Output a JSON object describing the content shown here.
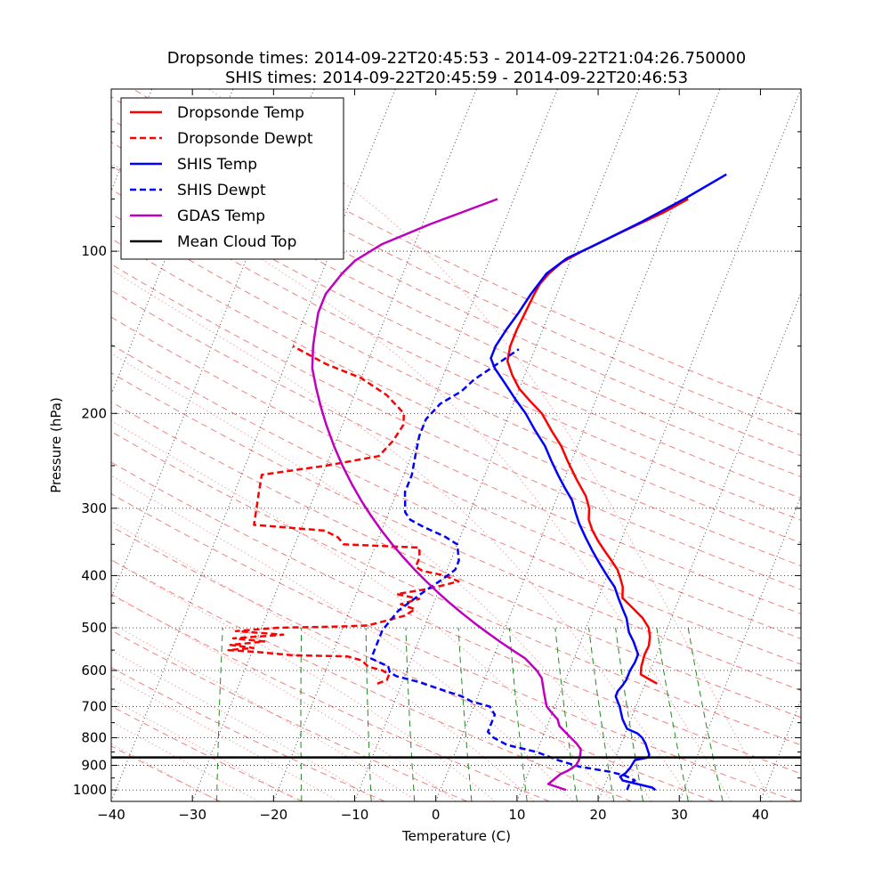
{
  "chart_data": {
    "type": "line",
    "title_line1": "Dropsonde times: 2014-09-22T20:45:53 - 2014-09-22T21:04:26.750000",
    "title_line2": "SHIS times: 2014-09-22T20:45:59 - 2014-09-22T20:46:53",
    "xlabel": "Temperature (C)",
    "ylabel": "Pressure (hPa)",
    "xlim": [
      -40,
      45
    ],
    "ylim": [
      1050,
      50
    ],
    "y_scale": "log",
    "skew": true,
    "x_ticks": [
      "−40",
      "−30",
      "−20",
      "−10",
      "0",
      "10",
      "20",
      "30",
      "40"
    ],
    "x_tick_values": [
      -40,
      -30,
      -20,
      -10,
      0,
      10,
      20,
      30,
      40
    ],
    "y_ticks": [
      "100",
      "200",
      "300",
      "400",
      "500",
      "600",
      "700",
      "800",
      "900",
      "1000"
    ],
    "y_tick_values": [
      100,
      200,
      300,
      400,
      500,
      600,
      700,
      800,
      900,
      1000
    ],
    "legend_position": "upper-left",
    "legend": [
      {
        "label": "Dropsonde Temp",
        "color": "#ff0000",
        "dash": false
      },
      {
        "label": "Dropsonde Dewpt",
        "color": "#ff0000",
        "dash": true
      },
      {
        "label": "SHIS Temp",
        "color": "#0000ff",
        "dash": false
      },
      {
        "label": "SHIS Dewpt",
        "color": "#0000ff",
        "dash": true
      },
      {
        "label": "GDAS Temp",
        "color": "#bf00bf",
        "dash": false
      },
      {
        "label": "Mean Cloud Top",
        "color": "#000000",
        "dash": false
      }
    ],
    "mean_cloud_top_hpa": 870,
    "series": [
      {
        "name": "Dropsonde Temp",
        "color": "#ff0000",
        "dash": false,
        "points": [
          [
            21.5,
            635
          ],
          [
            20,
            620
          ],
          [
            19,
            610
          ],
          [
            18.7,
            590
          ],
          [
            18.5,
            560
          ],
          [
            18.6,
            540
          ],
          [
            18.3,
            520
          ],
          [
            17.7,
            500
          ],
          [
            16.5,
            480
          ],
          [
            14.8,
            460
          ],
          [
            13,
            440
          ],
          [
            12.5,
            420
          ],
          [
            11.8,
            405
          ],
          [
            11,
            390
          ],
          [
            9.8,
            375
          ],
          [
            8.5,
            360
          ],
          [
            7.2,
            345
          ],
          [
            6,
            330
          ],
          [
            5,
            315
          ],
          [
            4.5,
            300
          ],
          [
            3.5,
            285
          ],
          [
            1.5,
            265
          ],
          [
            -0.5,
            245
          ],
          [
            -2,
            230
          ],
          [
            -4,
            215
          ],
          [
            -6,
            200
          ],
          [
            -8,
            190
          ],
          [
            -10,
            180
          ],
          [
            -11.5,
            170
          ],
          [
            -12.8,
            160
          ],
          [
            -13.2,
            150
          ],
          [
            -13.2,
            140
          ],
          [
            -13,
            130
          ],
          [
            -12.8,
            120
          ],
          [
            -12.6,
            115
          ],
          [
            -12,
            110
          ],
          [
            -11,
            105
          ],
          [
            -9,
            100
          ],
          [
            -5,
            92
          ],
          [
            -1,
            85
          ],
          [
            1.5,
            80
          ]
        ]
      },
      {
        "name": "Dropsonde Dewpt",
        "color": "#ff0000",
        "dash": true,
        "points": [
          [
            -13,
            635
          ],
          [
            -12,
            625
          ],
          [
            -12,
            610
          ],
          [
            -13,
            600
          ],
          [
            -15,
            590
          ],
          [
            -16,
            575
          ],
          [
            -18,
            565
          ],
          [
            -25,
            562
          ],
          [
            -29,
            555
          ],
          [
            -33,
            550
          ],
          [
            -30,
            545
          ],
          [
            -33,
            538
          ],
          [
            -29,
            530
          ],
          [
            -33,
            523
          ],
          [
            -27,
            515
          ],
          [
            -33,
            507
          ],
          [
            -28,
            500
          ],
          [
            -20,
            497
          ],
          [
            -17,
            495
          ],
          [
            -15,
            485
          ],
          [
            -13,
            475
          ],
          [
            -12,
            462
          ],
          [
            -14,
            452
          ],
          [
            -12,
            442
          ],
          [
            -15,
            433
          ],
          [
            -12,
            425
          ],
          [
            -10,
            418
          ],
          [
            -8,
            410
          ],
          [
            -10,
            400
          ],
          [
            -13,
            392
          ],
          [
            -14,
            385
          ],
          [
            -14,
            370
          ],
          [
            -14.5,
            355
          ],
          [
            -24,
            350
          ],
          [
            -25,
            340
          ],
          [
            -27,
            330
          ],
          [
            -36,
            322
          ],
          [
            -36.5,
            300
          ],
          [
            -37,
            280
          ],
          [
            -37.5,
            260
          ],
          [
            -30,
            250
          ],
          [
            -24,
            240
          ],
          [
            -23,
            225
          ],
          [
            -22.5,
            210
          ],
          [
            -23,
            200
          ],
          [
            -26,
            185
          ],
          [
            -30,
            172
          ],
          [
            -35,
            162
          ],
          [
            -40,
            150
          ]
        ]
      },
      {
        "name": "SHIS Temp",
        "color": "#0000ff",
        "dash": false,
        "points": [
          [
            26.5,
            1000
          ],
          [
            26,
            990
          ],
          [
            24,
            975
          ],
          [
            22,
            960
          ],
          [
            21.5,
            945
          ],
          [
            22,
            930
          ],
          [
            22.3,
            910
          ],
          [
            22.5,
            880
          ],
          [
            24,
            870
          ],
          [
            24,
            860
          ],
          [
            23.5,
            840
          ],
          [
            23,
            820
          ],
          [
            22.3,
            800
          ],
          [
            21.5,
            785
          ],
          [
            20,
            770
          ],
          [
            19.5,
            755
          ],
          [
            19,
            740
          ],
          [
            18.5,
            720
          ],
          [
            18,
            700
          ],
          [
            17.5,
            685
          ],
          [
            17,
            670
          ],
          [
            17,
            655
          ],
          [
            17.3,
            640
          ],
          [
            17.5,
            625
          ],
          [
            17.5,
            600
          ],
          [
            17.7,
            580
          ],
          [
            17.7,
            560
          ],
          [
            17.3,
            550
          ],
          [
            16.5,
            530
          ],
          [
            15.5,
            510
          ],
          [
            15,
            495
          ],
          [
            14.5,
            480
          ],
          [
            13.5,
            460
          ],
          [
            12.5,
            440
          ],
          [
            11.5,
            420
          ],
          [
            10,
            400
          ],
          [
            8.5,
            380
          ],
          [
            7,
            360
          ],
          [
            5.5,
            340
          ],
          [
            4,
            320
          ],
          [
            3,
            305
          ],
          [
            2,
            290
          ],
          [
            0.5,
            275
          ],
          [
            -1,
            260
          ],
          [
            -2.5,
            245
          ],
          [
            -4,
            230
          ],
          [
            -6,
            215
          ],
          [
            -8,
            200
          ],
          [
            -10,
            188
          ],
          [
            -12,
            176
          ],
          [
            -14,
            165
          ],
          [
            -15,
            158
          ],
          [
            -15,
            150
          ],
          [
            -14.5,
            140
          ],
          [
            -13.8,
            130
          ],
          [
            -13.2,
            120
          ],
          [
            -12.3,
            110
          ],
          [
            -10.5,
            103
          ],
          [
            -8,
            98
          ],
          [
            -3,
            88
          ],
          [
            1,
            80
          ],
          [
            5,
            72
          ]
        ]
      },
      {
        "name": "SHIS Dewpt",
        "color": "#0000ff",
        "dash": true,
        "points": [
          [
            23,
            1000
          ],
          [
            23,
            975
          ],
          [
            23.5,
            960
          ],
          [
            22,
            940
          ],
          [
            20,
            925
          ],
          [
            16,
            905
          ],
          [
            13,
            880
          ],
          [
            10,
            850
          ],
          [
            6,
            825
          ],
          [
            4,
            800
          ],
          [
            3,
            780
          ],
          [
            3,
            750
          ],
          [
            3,
            725
          ],
          [
            2,
            700
          ],
          [
            -0.5,
            685
          ],
          [
            -2,
            670
          ],
          [
            -5,
            650
          ],
          [
            -8,
            630
          ],
          [
            -11,
            615
          ],
          [
            -12,
            605
          ],
          [
            -12.5,
            590
          ],
          [
            -15,
            570
          ],
          [
            -15,
            545
          ],
          [
            -15,
            525
          ],
          [
            -15,
            505
          ],
          [
            -14.5,
            485
          ],
          [
            -14,
            465
          ],
          [
            -13,
            448
          ],
          [
            -12,
            432
          ],
          [
            -11,
            418
          ],
          [
            -10,
            405
          ],
          [
            -9,
            390
          ],
          [
            -9,
            375
          ],
          [
            -9.5,
            362
          ],
          [
            -10,
            350
          ],
          [
            -12,
            338
          ],
          [
            -15,
            325
          ],
          [
            -17,
            315
          ],
          [
            -18,
            305
          ],
          [
            -18.5,
            292
          ],
          [
            -19,
            280
          ],
          [
            -19,
            260
          ],
          [
            -19.5,
            240
          ],
          [
            -20,
            220
          ],
          [
            -20,
            205
          ],
          [
            -19,
            192
          ],
          [
            -17,
            182
          ],
          [
            -16,
            173
          ],
          [
            -14.5,
            165
          ],
          [
            -13,
            157
          ],
          [
            -12,
            152
          ]
        ]
      },
      {
        "name": "GDAS Temp",
        "color": "#bf00bf",
        "dash": false,
        "points": [
          [
            15.5,
            1000
          ],
          [
            14.5,
            990
          ],
          [
            13,
            975
          ],
          [
            13.5,
            955
          ],
          [
            14,
            935
          ],
          [
            14.8,
            920
          ],
          [
            15.5,
            900
          ],
          [
            15.6,
            880
          ],
          [
            15.5,
            860
          ],
          [
            15.3,
            840
          ],
          [
            14.5,
            820
          ],
          [
            13.5,
            800
          ],
          [
            12.5,
            780
          ],
          [
            11.5,
            760
          ],
          [
            11,
            740
          ],
          [
            10,
            720
          ],
          [
            9,
            700
          ],
          [
            8.5,
            680
          ],
          [
            8,
            660
          ],
          [
            7.5,
            640
          ],
          [
            7,
            620
          ],
          [
            6,
            600
          ],
          [
            5,
            585
          ],
          [
            4,
            570
          ],
          [
            2,
            550
          ],
          [
            0,
            530
          ],
          [
            -2,
            510
          ],
          [
            -4,
            490
          ],
          [
            -6,
            470
          ],
          [
            -8,
            450
          ],
          [
            -10,
            430
          ],
          [
            -12,
            410
          ],
          [
            -14,
            390
          ],
          [
            -16,
            370
          ],
          [
            -18,
            350
          ],
          [
            -20,
            330
          ],
          [
            -22,
            310
          ],
          [
            -24,
            290
          ],
          [
            -26,
            270
          ],
          [
            -28,
            250
          ],
          [
            -30,
            230
          ],
          [
            -32,
            210
          ],
          [
            -33.5,
            195
          ],
          [
            -35,
            180
          ],
          [
            -36.5,
            165
          ],
          [
            -37.5,
            150
          ],
          [
            -38,
            140
          ],
          [
            -38.5,
            130
          ],
          [
            -38.5,
            120
          ],
          [
            -37.5,
            110
          ],
          [
            -36.5,
            104
          ],
          [
            -34,
            97
          ],
          [
            -29,
            89
          ],
          [
            -22,
            80
          ]
        ]
      }
    ]
  }
}
